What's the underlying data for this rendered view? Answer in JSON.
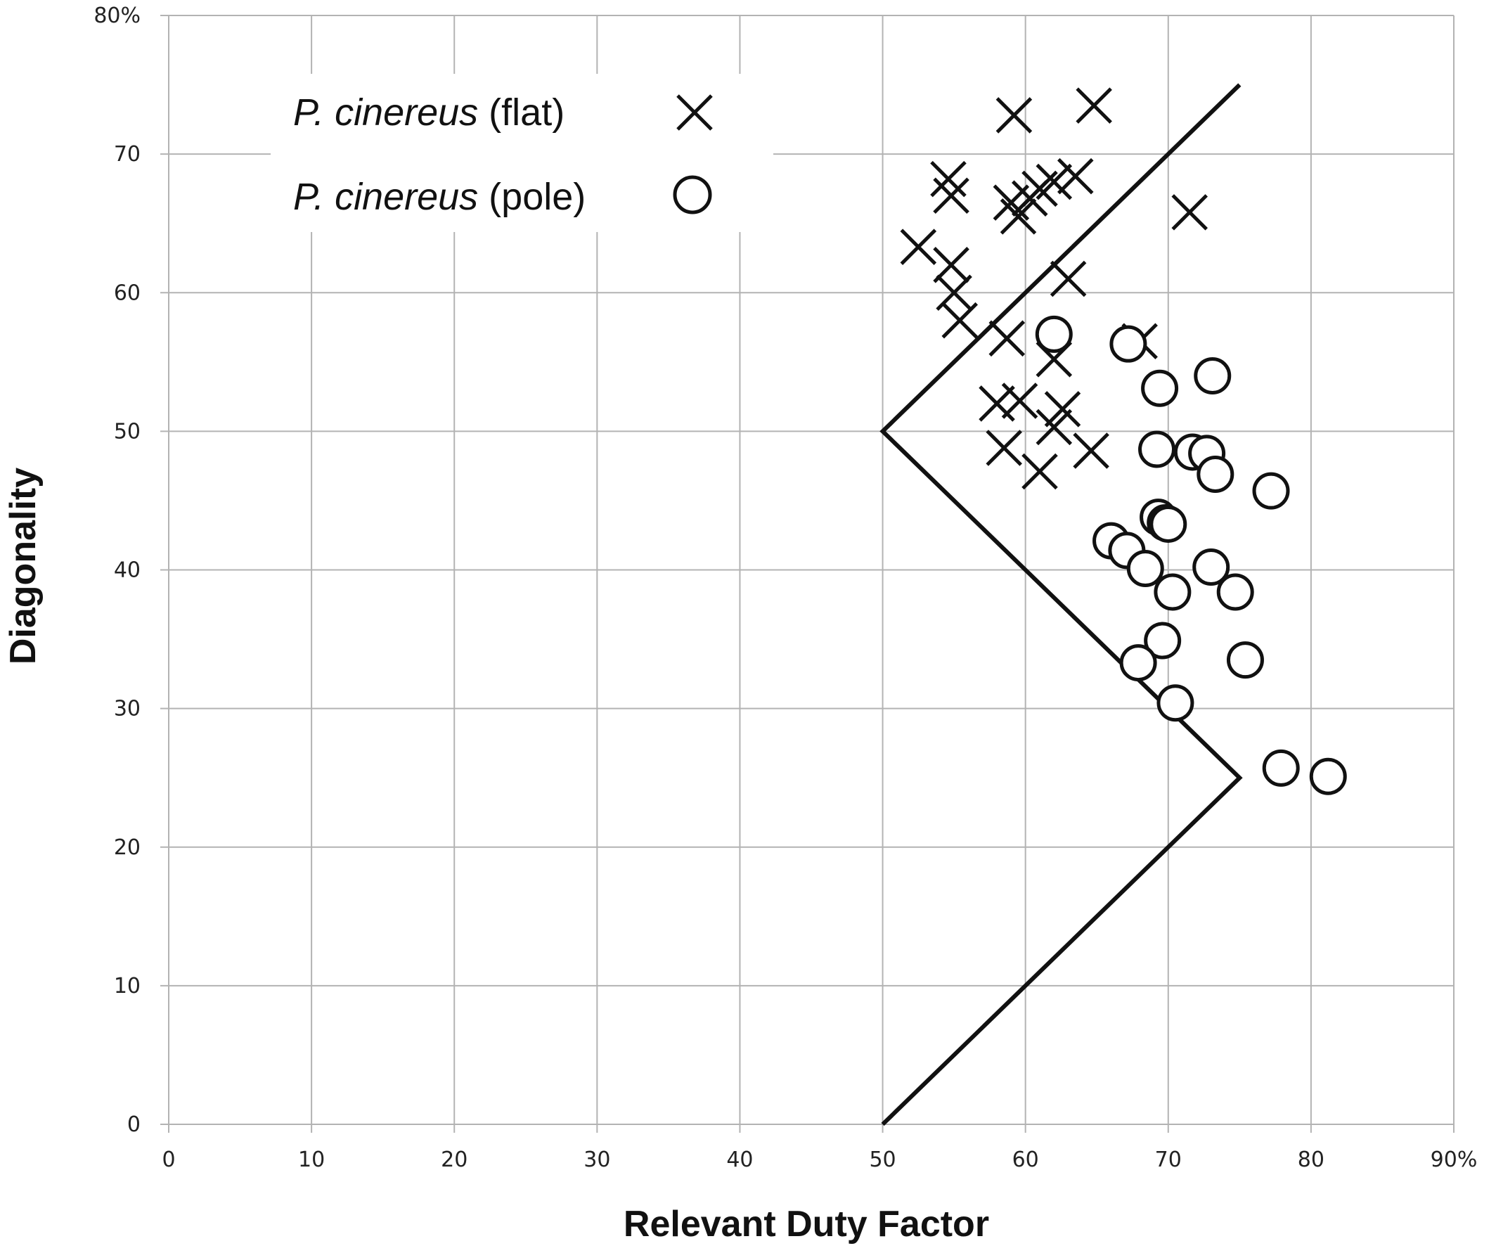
{
  "chart_data": {
    "type": "scatter",
    "title": "",
    "xlabel": "Relevant Duty Factor",
    "ylabel": "Diagonality",
    "xlim": [
      0,
      90
    ],
    "ylim": [
      0,
      80
    ],
    "x_ticks": [
      "0",
      "10",
      "20",
      "30",
      "40",
      "50",
      "60",
      "70",
      "80",
      "90%"
    ],
    "y_ticks": [
      "0",
      "10",
      "20",
      "30",
      "40",
      "50",
      "60",
      "70",
      "80%"
    ],
    "grid": true,
    "legend_position": "top-left",
    "legend": [
      {
        "italic": "P. cinereus",
        "plain": " (flat)",
        "marker": "x"
      },
      {
        "italic": "P. cinereus",
        "plain": " (pole)",
        "marker": "circle"
      }
    ],
    "boundary_line": [
      [
        50,
        0
      ],
      [
        75,
        25
      ],
      [
        50,
        50
      ],
      [
        75,
        75
      ]
    ],
    "series": [
      {
        "name": "P. cinereus (flat)",
        "marker": "x",
        "points": [
          [
            59.2,
            72.8
          ],
          [
            64.8,
            73.5
          ],
          [
            54.6,
            68.2
          ],
          [
            54.8,
            67.0
          ],
          [
            59.0,
            66.5
          ],
          [
            59.5,
            65.5
          ],
          [
            60.3,
            66.8
          ],
          [
            61.0,
            67.5
          ],
          [
            62.0,
            68.0
          ],
          [
            63.5,
            68.4
          ],
          [
            71.5,
            65.8
          ],
          [
            52.5,
            63.3
          ],
          [
            54.8,
            62.0
          ],
          [
            55.0,
            60.0
          ],
          [
            55.4,
            58.0
          ],
          [
            63.0,
            61.0
          ],
          [
            58.7,
            56.7
          ],
          [
            68.0,
            56.5
          ],
          [
            62.0,
            55.2
          ],
          [
            58.0,
            52.0
          ],
          [
            59.6,
            52.2
          ],
          [
            62.6,
            51.6
          ],
          [
            62.0,
            50.3
          ],
          [
            58.5,
            48.8
          ],
          [
            64.6,
            48.6
          ],
          [
            61.0,
            47.1
          ]
        ]
      },
      {
        "name": "P. cinereus (pole)",
        "marker": "circle",
        "points": [
          [
            62.0,
            57.0
          ],
          [
            67.2,
            56.3
          ],
          [
            73.1,
            54.0
          ],
          [
            69.4,
            53.1
          ],
          [
            69.2,
            48.7
          ],
          [
            71.7,
            48.5
          ],
          [
            72.7,
            48.4
          ],
          [
            73.3,
            46.9
          ],
          [
            77.2,
            45.7
          ],
          [
            69.3,
            43.8
          ],
          [
            69.8,
            43.4
          ],
          [
            70.0,
            43.3
          ],
          [
            66.0,
            42.1
          ],
          [
            67.1,
            41.4
          ],
          [
            68.4,
            40.1
          ],
          [
            73.0,
            40.2
          ],
          [
            70.3,
            38.4
          ],
          [
            74.7,
            38.4
          ],
          [
            69.6,
            34.9
          ],
          [
            67.9,
            33.3
          ],
          [
            75.4,
            33.5
          ],
          [
            70.5,
            30.4
          ],
          [
            77.9,
            25.7
          ],
          [
            81.2,
            25.1
          ]
        ]
      }
    ]
  }
}
